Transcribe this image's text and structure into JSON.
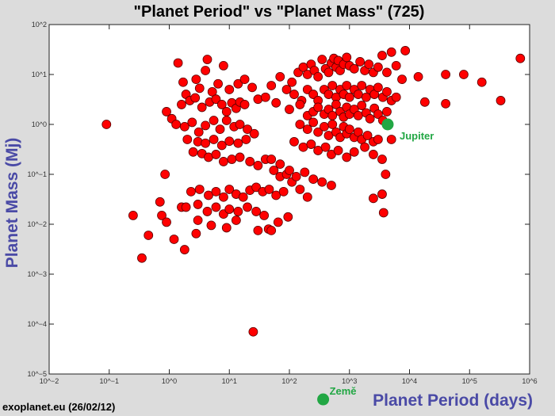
{
  "chart_data": {
    "type": "scatter",
    "title": "\"Planet Period\"  vs \"Planet Mass\" (725)",
    "xlabel": "Planet Period (days)",
    "ylabel": "Planet Mass (Mj)",
    "xscale": "log",
    "yscale": "log",
    "xlim": [
      0.01,
      1000000
    ],
    "ylim": [
      1e-05,
      100
    ],
    "x_ticks": [
      {
        "value": 0.01,
        "label": "10^−2"
      },
      {
        "value": 0.1,
        "label": "10^−1"
      },
      {
        "value": 1,
        "label": "10^0"
      },
      {
        "value": 10,
        "label": "10^1"
      },
      {
        "value": 100,
        "label": "10^2"
      },
      {
        "value": 1000,
        "label": "10^3"
      },
      {
        "value": 10000,
        "label": "10^4"
      },
      {
        "value": 100000,
        "label": "10^5"
      },
      {
        "value": 1000000,
        "label": "10^6"
      }
    ],
    "y_ticks": [
      {
        "value": 1e-05,
        "label": "10^−5"
      },
      {
        "value": 0.0001,
        "label": "10^−4"
      },
      {
        "value": 0.001,
        "label": "10^−3"
      },
      {
        "value": 0.01,
        "label": "10^−2"
      },
      {
        "value": 0.1,
        "label": "10^−1"
      },
      {
        "value": 1,
        "label": "10^0"
      },
      {
        "value": 10,
        "label": "10^1"
      },
      {
        "value": 100,
        "label": "10^2"
      }
    ],
    "grid": false,
    "marker_color": "#ff0000",
    "highlight_color": "#22a744",
    "points": [
      [
        0.09,
        1.0
      ],
      [
        0.25,
        0.015
      ],
      [
        0.35,
        0.0021
      ],
      [
        0.45,
        0.006
      ],
      [
        0.7,
        0.028
      ],
      [
        0.75,
        0.015
      ],
      [
        0.9,
        0.011
      ],
      [
        1.8,
        0.0031
      ],
      [
        1.6,
        0.022
      ],
      [
        2.8,
        0.0065
      ],
      [
        0.85,
        0.1
      ],
      [
        1.2,
        0.005
      ],
      [
        25,
        7e-05
      ],
      [
        4.3,
        20
      ],
      [
        1.4,
        17
      ],
      [
        8,
        15
      ],
      [
        4,
        12
      ],
      [
        2.8,
        8
      ],
      [
        1.7,
        7
      ],
      [
        6.5,
        6.5
      ],
      [
        3.2,
        5.3
      ],
      [
        5.2,
        4.5
      ],
      [
        1.9,
        4
      ],
      [
        0.9,
        1.8
      ],
      [
        1.1,
        1.3
      ],
      [
        1.6,
        2.5
      ],
      [
        2.2,
        3
      ],
      [
        2.7,
        3.4
      ],
      [
        3.5,
        2.2
      ],
      [
        4.7,
        2.8
      ],
      [
        6,
        3.2
      ],
      [
        7.5,
        2.5
      ],
      [
        9,
        1.8
      ],
      [
        11,
        2.7
      ],
      [
        13,
        2.1
      ],
      [
        15,
        2.8
      ],
      [
        18,
        2.5
      ],
      [
        1.3,
        1.0
      ],
      [
        1.8,
        0.9
      ],
      [
        2.4,
        1.1
      ],
      [
        3.1,
        0.7
      ],
      [
        4,
        0.95
      ],
      [
        5.5,
        1.2
      ],
      [
        7,
        0.8
      ],
      [
        9,
        1.2
      ],
      [
        12,
        0.9
      ],
      [
        15,
        1.0
      ],
      [
        20,
        0.8
      ],
      [
        26,
        0.65
      ],
      [
        2.0,
        0.5
      ],
      [
        3.0,
        0.45
      ],
      [
        4.0,
        0.42
      ],
      [
        5.5,
        0.5
      ],
      [
        7.5,
        0.38
      ],
      [
        10,
        0.46
      ],
      [
        14,
        0.42
      ],
      [
        19,
        0.5
      ],
      [
        2.5,
        0.28
      ],
      [
        3.5,
        0.26
      ],
      [
        4.5,
        0.22
      ],
      [
        6.0,
        0.25
      ],
      [
        8.0,
        0.18
      ],
      [
        11,
        0.2
      ],
      [
        15,
        0.22
      ],
      [
        22,
        0.18
      ],
      [
        30,
        0.15
      ],
      [
        40,
        0.2
      ],
      [
        55,
        0.12
      ],
      [
        70,
        0.09
      ],
      [
        90,
        0.1
      ],
      [
        2.3,
        0.045
      ],
      [
        3.2,
        0.05
      ],
      [
        4.5,
        0.038
      ],
      [
        6,
        0.045
      ],
      [
        8,
        0.035
      ],
      [
        10,
        0.05
      ],
      [
        13,
        0.04
      ],
      [
        17,
        0.035
      ],
      [
        22,
        0.048
      ],
      [
        28,
        0.055
      ],
      [
        36,
        0.045
      ],
      [
        46,
        0.05
      ],
      [
        60,
        0.038
      ],
      [
        80,
        0.045
      ],
      [
        110,
        0.07
      ],
      [
        150,
        0.05
      ],
      [
        1.9,
        0.022
      ],
      [
        3,
        0.025
      ],
      [
        4.3,
        0.018
      ],
      [
        6,
        0.022
      ],
      [
        8,
        0.016
      ],
      [
        10,
        0.02
      ],
      [
        14,
        0.018
      ],
      [
        20,
        0.022
      ],
      [
        28,
        0.018
      ],
      [
        38,
        0.015
      ],
      [
        45,
        0.008
      ],
      [
        50,
        0.0075
      ],
      [
        65,
        0.011
      ],
      [
        95,
        0.014
      ],
      [
        3,
        0.012
      ],
      [
        5,
        0.0095
      ],
      [
        9,
        0.0085
      ],
      [
        13,
        0.012
      ],
      [
        30,
        0.0075
      ],
      [
        10,
        5
      ],
      [
        14,
        6.5
      ],
      [
        18,
        8
      ],
      [
        24,
        5.5
      ],
      [
        30,
        3.2
      ],
      [
        40,
        3.5
      ],
      [
        50,
        6
      ],
      [
        60,
        2.7
      ],
      [
        70,
        9
      ],
      [
        90,
        5
      ],
      [
        110,
        7
      ],
      [
        140,
        11
      ],
      [
        170,
        14
      ],
      [
        200,
        10
      ],
      [
        230,
        16
      ],
      [
        260,
        12
      ],
      [
        300,
        9
      ],
      [
        350,
        20
      ],
      [
        400,
        13
      ],
      [
        450,
        11
      ],
      [
        500,
        17
      ],
      [
        550,
        21
      ],
      [
        600,
        14
      ],
      [
        650,
        19
      ],
      [
        700,
        12
      ],
      [
        800,
        16
      ],
      [
        900,
        22
      ],
      [
        1000,
        15
      ],
      [
        1200,
        13
      ],
      [
        1500,
        18
      ],
      [
        1800,
        12
      ],
      [
        2100,
        16
      ],
      [
        2500,
        11
      ],
      [
        3000,
        14
      ],
      [
        3500,
        24
      ],
      [
        4200,
        11
      ],
      [
        5000,
        28
      ],
      [
        6000,
        15
      ],
      [
        7500,
        8
      ],
      [
        8500,
        30
      ],
      [
        120,
        4
      ],
      [
        160,
        3
      ],
      [
        200,
        5
      ],
      [
        250,
        4
      ],
      [
        300,
        3
      ],
      [
        380,
        5
      ],
      [
        450,
        4
      ],
      [
        520,
        6
      ],
      [
        600,
        3.5
      ],
      [
        700,
        5
      ],
      [
        800,
        4
      ],
      [
        900,
        6
      ],
      [
        1000,
        3.5
      ],
      [
        1200,
        5
      ],
      [
        1400,
        4
      ],
      [
        1600,
        6
      ],
      [
        1900,
        3.5
      ],
      [
        2200,
        5
      ],
      [
        2600,
        4
      ],
      [
        3000,
        5.5
      ],
      [
        3600,
        3.5
      ],
      [
        4200,
        4.5
      ],
      [
        5000,
        3
      ],
      [
        6000,
        3.5
      ],
      [
        100,
        2
      ],
      [
        150,
        2.5
      ],
      [
        200,
        1.5
      ],
      [
        250,
        1.8
      ],
      [
        300,
        2.2
      ],
      [
        380,
        1.6
      ],
      [
        450,
        2
      ],
      [
        520,
        1.5
      ],
      [
        600,
        2.5
      ],
      [
        700,
        1.8
      ],
      [
        800,
        1.4
      ],
      [
        900,
        2.2
      ],
      [
        1000,
        1.6
      ],
      [
        1200,
        2
      ],
      [
        1400,
        1.5
      ],
      [
        1600,
        2.4
      ],
      [
        1900,
        1.7
      ],
      [
        2200,
        1.3
      ],
      [
        2600,
        2.1
      ],
      [
        3000,
        1.6
      ],
      [
        3600,
        1.2
      ],
      [
        4200,
        1.8
      ],
      [
        150,
        1.0
      ],
      [
        200,
        0.8
      ],
      [
        250,
        1.1
      ],
      [
        300,
        0.7
      ],
      [
        380,
        0.9
      ],
      [
        450,
        0.6
      ],
      [
        520,
        1.0
      ],
      [
        600,
        0.7
      ],
      [
        700,
        0.55
      ],
      [
        800,
        0.9
      ],
      [
        900,
        0.65
      ],
      [
        1000,
        0.8
      ],
      [
        1200,
        0.55
      ],
      [
        1400,
        0.7
      ],
      [
        1600,
        0.5
      ],
      [
        2000,
        0.6
      ],
      [
        2500,
        0.45
      ],
      [
        3000,
        0.5
      ],
      [
        120,
        0.45
      ],
      [
        170,
        0.35
      ],
      [
        230,
        0.4
      ],
      [
        300,
        0.3
      ],
      [
        400,
        0.35
      ],
      [
        500,
        0.25
      ],
      [
        650,
        0.3
      ],
      [
        900,
        0.22
      ],
      [
        1200,
        0.28
      ],
      [
        1800,
        0.35
      ],
      [
        2500,
        0.25
      ],
      [
        3500,
        0.2
      ],
      [
        5000,
        0.5
      ],
      [
        50,
        0.2
      ],
      [
        70,
        0.16
      ],
      [
        100,
        0.12
      ],
      [
        130,
        0.09
      ],
      [
        180,
        0.11
      ],
      [
        250,
        0.08
      ],
      [
        350,
        0.07
      ],
      [
        500,
        0.06
      ],
      [
        4000,
        0.1
      ],
      [
        200,
        0.035
      ],
      [
        2500,
        0.033
      ],
      [
        3500,
        0.04
      ],
      [
        3700,
        0.017
      ],
      [
        14000,
        9
      ],
      [
        18000,
        2.8
      ],
      [
        40000,
        10
      ],
      [
        80000,
        10
      ],
      [
        160000,
        7
      ],
      [
        40000,
        2.6
      ],
      [
        330000,
        3
      ],
      [
        700000,
        21
      ]
    ],
    "highlights": [
      {
        "name": "Jupiter",
        "x": 4333,
        "y": 1.0
      },
      {
        "name": "Země",
        "x": 365,
        "y": 3.1e-06
      }
    ],
    "source_note": "exoplanet.eu (26/02/12)"
  }
}
